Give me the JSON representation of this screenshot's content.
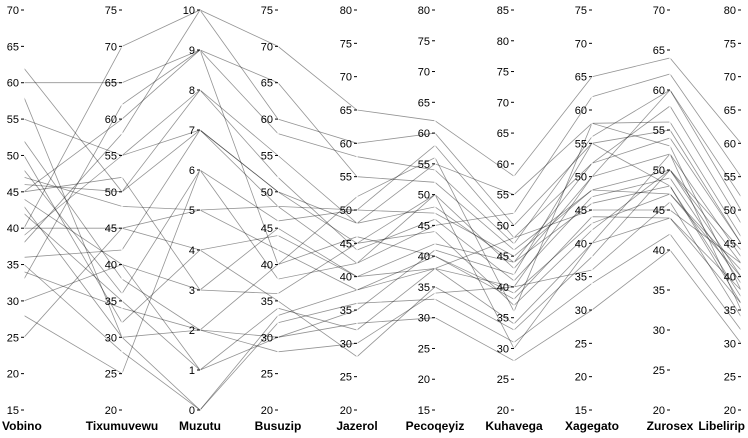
{
  "chart_data": {
    "type": "parallel-coordinates",
    "title": "",
    "grid": false,
    "legend": "none",
    "line_color": "#000000",
    "axes": [
      {
        "name": "Vobino",
        "range": [
          15,
          70
        ],
        "ticks": [
          15,
          20,
          25,
          30,
          35,
          40,
          45,
          50,
          55,
          60,
          65,
          70
        ]
      },
      {
        "name": "Tixumuvewu",
        "range": [
          20,
          75
        ],
        "ticks": [
          20,
          25,
          30,
          35,
          40,
          45,
          50,
          55,
          60,
          65,
          70,
          75
        ]
      },
      {
        "name": "Muzutu",
        "range": [
          0,
          10
        ],
        "ticks": [
          0,
          1,
          2,
          3,
          4,
          5,
          6,
          7,
          8,
          9,
          10
        ]
      },
      {
        "name": "Busuzip",
        "range": [
          20,
          75
        ],
        "ticks": [
          20,
          25,
          30,
          35,
          40,
          45,
          50,
          55,
          60,
          65,
          70,
          75
        ]
      },
      {
        "name": "Jazerol",
        "range": [
          20,
          80
        ],
        "ticks": [
          20,
          25,
          30,
          35,
          40,
          45,
          50,
          55,
          60,
          65,
          70,
          75,
          80
        ]
      },
      {
        "name": "Pecoqeyiz",
        "range": [
          15,
          80
        ],
        "ticks": [
          15,
          20,
          25,
          30,
          35,
          40,
          45,
          50,
          55,
          60,
          65,
          70,
          75,
          80
        ]
      },
      {
        "name": "Kuhavega",
        "range": [
          20,
          85
        ],
        "ticks": [
          20,
          25,
          30,
          35,
          40,
          45,
          50,
          55,
          60,
          65,
          70,
          75,
          80,
          85
        ]
      },
      {
        "name": "Xagegato",
        "range": [
          15,
          75
        ],
        "ticks": [
          15,
          20,
          25,
          30,
          35,
          40,
          45,
          50,
          55,
          60,
          65,
          70,
          75
        ]
      },
      {
        "name": "Zurosex",
        "range": [
          20,
          70
        ],
        "ticks": [
          20,
          25,
          30,
          35,
          40,
          45,
          50,
          55,
          60,
          65,
          70
        ]
      },
      {
        "name": "Libelirip",
        "range": [
          20,
          80
        ],
        "ticks": [
          20,
          25,
          30,
          35,
          40,
          45,
          50,
          55,
          60,
          65,
          70,
          75,
          80
        ]
      }
    ],
    "series": [
      {
        "values": [
          40,
          45,
          5,
          48,
          50,
          47,
          45,
          48,
          47,
          40
        ]
      },
      {
        "values": [
          43,
          30,
          2,
          30,
          35,
          41,
          42,
          55,
          55,
          45
        ]
      },
      {
        "values": [
          45,
          60,
          9,
          40,
          52,
          56,
          36,
          58,
          53,
          38
        ]
      },
      {
        "values": [
          35,
          28,
          0,
          33,
          38,
          38,
          48,
          45,
          45,
          42
        ]
      },
      {
        "values": [
          55,
          55,
          7,
          50,
          45,
          50,
          30,
          40,
          52,
          35
        ]
      },
      {
        "values": [
          30,
          40,
          3,
          45,
          40,
          38,
          40,
          50,
          60,
          50
        ]
      },
      {
        "values": [
          50,
          32,
          4,
          35,
          28,
          35,
          33,
          38,
          50,
          44
        ]
      },
      {
        "values": [
          38,
          58,
          10,
          60,
          60,
          60,
          50,
          55,
          48,
          36
        ]
      },
      {
        "values": [
          42,
          35,
          1,
          30,
          33,
          30,
          28,
          30,
          40,
          30
        ]
      },
      {
        "values": [
          62,
          50,
          8,
          55,
          48,
          48,
          44,
          52,
          58,
          48
        ]
      },
      {
        "values": [
          28,
          25,
          6,
          38,
          42,
          45,
          52,
          62,
          62,
          55
        ]
      },
      {
        "values": [
          47,
          48,
          5,
          42,
          38,
          40,
          38,
          44,
          44,
          38
        ]
      },
      {
        "values": [
          33,
          62,
          9,
          65,
          55,
          52,
          46,
          48,
          50,
          42
        ]
      },
      {
        "values": [
          52,
          38,
          2,
          28,
          30,
          34,
          40,
          36,
          46,
          34
        ]
      },
      {
        "values": [
          36,
          42,
          7,
          50,
          48,
          55,
          55,
          58,
          56,
          46
        ]
      },
      {
        "values": [
          45,
          52,
          3,
          36,
          45,
          44,
          37,
          42,
          50,
          40
        ]
      },
      {
        "values": [
          58,
          30,
          0,
          32,
          36,
          33,
          31,
          34,
          42,
          32
        ]
      },
      {
        "values": [
          40,
          70,
          10,
          70,
          65,
          62,
          58,
          65,
          64,
          60
        ]
      },
      {
        "values": [
          25,
          45,
          4,
          44,
          40,
          42,
          44,
          46,
          48,
          37
        ]
      },
      {
        "values": [
          48,
          36,
          6,
          46,
          50,
          58,
          48,
          52,
          54,
          45
        ]
      },
      {
        "values": [
          39,
          55,
          8,
          52,
          44,
          46,
          41,
          47,
          49,
          39
        ]
      },
      {
        "values": [
          44,
          40,
          1,
          34,
          32,
          38,
          34,
          40,
          44,
          36
        ]
      },
      {
        "values": [
          60,
          65,
          9,
          58,
          58,
          54,
          47,
          56,
          60,
          52
        ]
      },
      {
        "values": [
          34,
          34,
          2,
          40,
          46,
          40,
          39,
          43,
          47,
          41
        ]
      },
      {
        "values": [
          46,
          50,
          7,
          48,
          42,
          50,
          43,
          50,
          52,
          43
        ]
      }
    ]
  }
}
